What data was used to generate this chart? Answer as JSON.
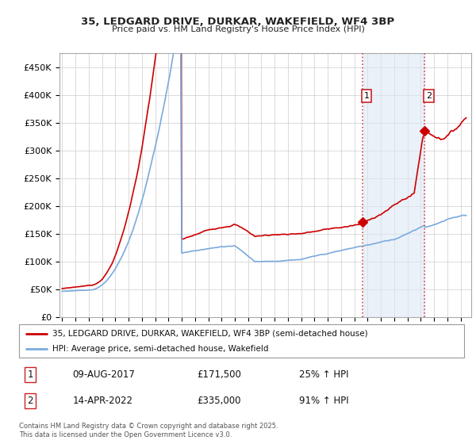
{
  "title": "35, LEDGARD DRIVE, DURKAR, WAKEFIELD, WF4 3BP",
  "subtitle": "Price paid vs. HM Land Registry's House Price Index (HPI)",
  "background_color": "#ffffff",
  "grid_color": "#cccccc",
  "red_line_color": "#cc0000",
  "blue_line_color": "#7aaadd",
  "vline_color": "#dd4444",
  "annotation1": {
    "label": "1",
    "date": "09-AUG-2017",
    "price": "£171,500",
    "change": "25% ↑ HPI"
  },
  "annotation2": {
    "label": "2",
    "date": "14-APR-2022",
    "price": "£335,000",
    "change": "91% ↑ HPI"
  },
  "legend_line1": "35, LEDGARD DRIVE, DURKAR, WAKEFIELD, WF4 3BP (semi-detached house)",
  "legend_line2": "HPI: Average price, semi-detached house, Wakefield",
  "footer": "Contains HM Land Registry data © Crown copyright and database right 2025.\nThis data is licensed under the Open Government Licence v3.0.",
  "ylim": [
    0,
    475000
  ],
  "yticks": [
    0,
    50000,
    100000,
    150000,
    200000,
    250000,
    300000,
    350000,
    400000,
    450000
  ],
  "ytick_labels": [
    "£0",
    "£50K",
    "£100K",
    "£150K",
    "£200K",
    "£250K",
    "£300K",
    "£350K",
    "£400K",
    "£450K"
  ],
  "t1_year": 2017.614,
  "t2_year": 2022.286,
  "marker1_price": 171500,
  "marker2_price": 335000,
  "between_shade_color": "#dde8f5",
  "between_shade_alpha": 0.6,
  "xlim_left": 1994.8,
  "xlim_right": 2025.8
}
